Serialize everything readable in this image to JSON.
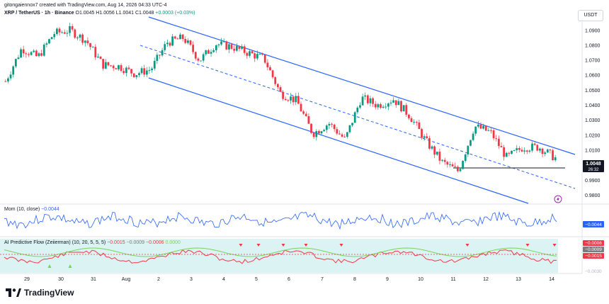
{
  "header": {
    "author_line": "gitongaiennox7 created with TradingView.com, Aug 14, 2026 04:33 UTC-4",
    "symbol": "XRP / TetherUS · 1h · Binance",
    "ohlc": "O1.0045 H1.0056 L1.0041 C1.0048",
    "change": "+0.0003 (+0.03%)",
    "currency": "USDT"
  },
  "price_panel": {
    "last_price": "1.0048",
    "countdown": "26:32",
    "y_ticks": [
      "1.0900",
      "1.0800",
      "1.0700",
      "1.0600",
      "1.0500",
      "1.0400",
      "1.0300",
      "1.0200",
      "1.0100",
      "0.9900",
      "0.9800"
    ]
  },
  "mom_panel": {
    "label": "Mom (10, close)",
    "value": "−0.0044",
    "badge": "−0.0044"
  },
  "ai_panel": {
    "label": "AI Predictive Flow (Zeiierman) (10, 20, 5, 5, 5)",
    "values": [
      "−0.0015",
      "−0.0009",
      "−0.0006",
      "0.0000"
    ],
    "badges": [
      "−0.0006",
      "−0.0009",
      "−0.0015"
    ],
    "bottom_tick": "−0.0030"
  },
  "x_axis": [
    "29",
    "30",
    "31",
    "Aug",
    "2",
    "3",
    "4",
    "5",
    "6",
    "7",
    "8",
    "9",
    "10",
    "11",
    "12",
    "13",
    "14"
  ],
  "footer": {
    "brand": "TradingView"
  },
  "colors": {
    "up": "#089981",
    "down": "#f23645",
    "channel": "#2962ff",
    "mom_line": "#2962ff",
    "ai_fill": "#c8ecec",
    "ai_red": "#f23645",
    "ai_green": "#7bd35a"
  },
  "chart_data": {
    "type": "candlestick",
    "interval": "1h",
    "ylim": [
      0.975,
      1.097
    ],
    "support_level": 1.003,
    "approx_close_path": [
      {
        "x": "Jul 28",
        "y": 1.056
      },
      {
        "x": "Jul 29",
        "y": 1.078
      },
      {
        "x": "Jul 29",
        "y": 1.072
      },
      {
        "x": "Jul 30",
        "y": 1.088
      },
      {
        "x": "Jul 30",
        "y": 1.09
      },
      {
        "x": "Jul 31",
        "y": 1.083
      },
      {
        "x": "Jul 31",
        "y": 1.067
      },
      {
        "x": "Aug 1",
        "y": 1.066
      },
      {
        "x": "Aug 1",
        "y": 1.061
      },
      {
        "x": "Aug 2",
        "y": 1.064
      },
      {
        "x": "Aug 2",
        "y": 1.082
      },
      {
        "x": "Aug 3",
        "y": 1.085
      },
      {
        "x": "Aug 3",
        "y": 1.07
      },
      {
        "x": "Aug 4",
        "y": 1.081
      },
      {
        "x": "Aug 4",
        "y": 1.079
      },
      {
        "x": "Aug 5",
        "y": 1.075
      },
      {
        "x": "Aug 5",
        "y": 1.071
      },
      {
        "x": "Aug 6",
        "y": 1.048
      },
      {
        "x": "Aug 6",
        "y": 1.043
      },
      {
        "x": "Aug 7",
        "y": 1.021
      },
      {
        "x": "Aug 7",
        "y": 1.028
      },
      {
        "x": "Aug 8",
        "y": 1.017
      },
      {
        "x": "Aug 8",
        "y": 1.045
      },
      {
        "x": "Aug 9",
        "y": 1.04
      },
      {
        "x": "Aug 9",
        "y": 1.044
      },
      {
        "x": "Aug 10",
        "y": 1.033
      },
      {
        "x": "Aug 10",
        "y": 1.016
      },
      {
        "x": "Aug 11",
        "y": 1.002
      },
      {
        "x": "Aug 11",
        "y": 0.996
      },
      {
        "x": "Aug 12",
        "y": 1.026
      },
      {
        "x": "Aug 12",
        "y": 1.022
      },
      {
        "x": "Aug 13",
        "y": 1.005
      },
      {
        "x": "Aug 13",
        "y": 1.012
      },
      {
        "x": "Aug 14",
        "y": 1.012
      },
      {
        "x": "Aug 14",
        "y": 1.0048
      }
    ]
  }
}
